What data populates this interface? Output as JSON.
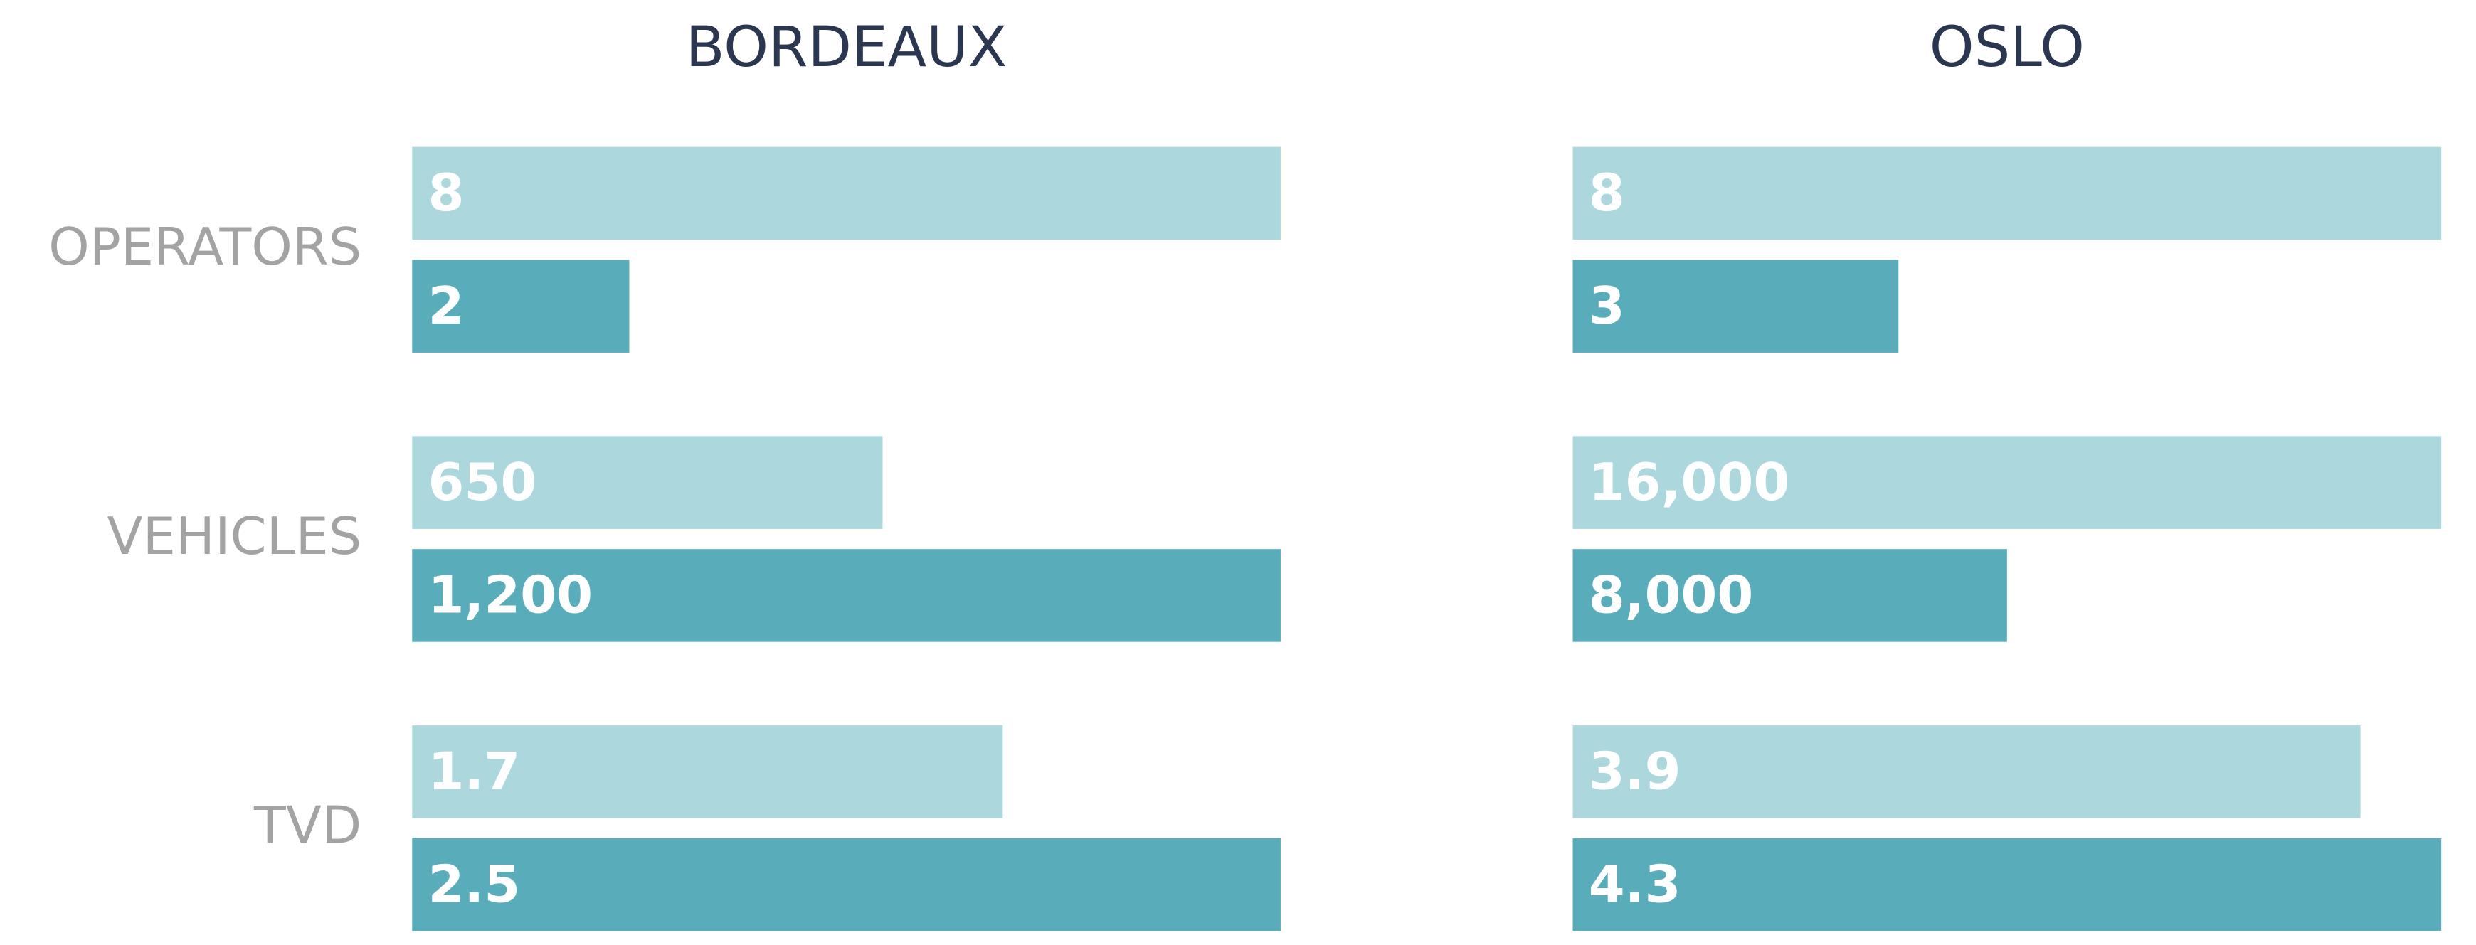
{
  "chart_data": [
    {
      "type": "bar",
      "title": "BORDEAUX",
      "categories": [
        "OPERATORS",
        "VEHICLES",
        "TVD"
      ],
      "series": [
        {
          "color": "#acd7dd",
          "values": [
            8,
            650,
            1.7
          ],
          "value_labels": [
            "8",
            "650",
            "1.7"
          ]
        },
        {
          "color": "#59adba",
          "values": [
            2,
            1200,
            2.5
          ],
          "value_labels": [
            "2",
            "1,200",
            "2.5"
          ]
        }
      ]
    },
    {
      "type": "bar",
      "title": "OSLO",
      "series": [
        {
          "color": "#acd7dd",
          "values": [
            8,
            16000,
            3.9
          ],
          "value_labels": [
            "8",
            "16,000",
            "3.9"
          ]
        },
        {
          "color": "#59adba",
          "values": [
            3,
            8000,
            4.3
          ],
          "value_labels": [
            "3",
            "8,000",
            "4.3"
          ]
        }
      ]
    }
  ]
}
